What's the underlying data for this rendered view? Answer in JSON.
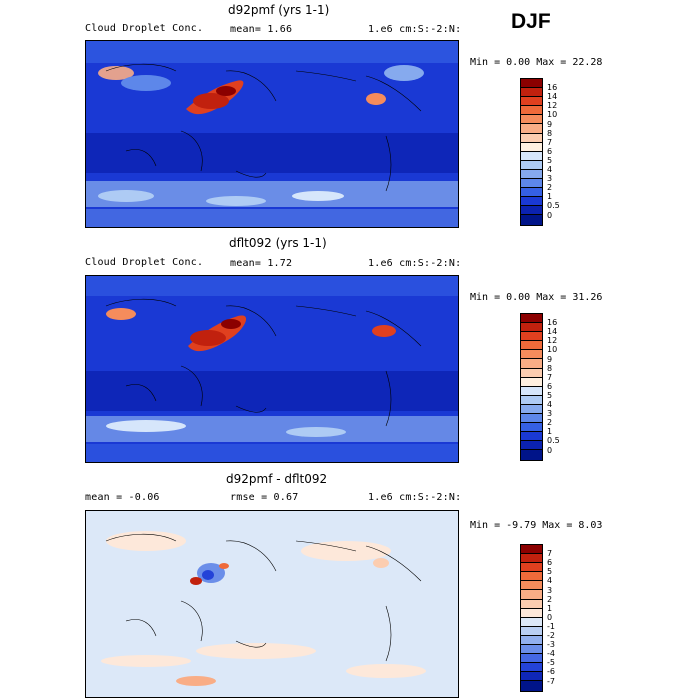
{
  "season": "DJF",
  "panels": [
    {
      "title": "d92pmf (yrs 1-1)",
      "field_label": "Cloud Droplet Conc.",
      "mean_text": "mean=   1.66",
      "units_text": "1.e6 cm:S:-2:N:",
      "minmax_text": "Min =   0.00 Max =  22.28",
      "colorbar": {
        "labels": [
          "16",
          "14",
          "12",
          "10",
          "9",
          "8",
          "7",
          "6",
          "5",
          "4",
          "3",
          "2",
          "1",
          "0.5",
          "0"
        ],
        "colors": [
          "#8b0000",
          "#c1210e",
          "#e0401f",
          "#ef6a3a",
          "#f58c5c",
          "#f9ad86",
          "#fccdb0",
          "#fff0e0",
          "#d6e6fb",
          "#aecbf4",
          "#86aaee",
          "#5d87ea",
          "#3560e4",
          "#1a39d4",
          "#0b22b0",
          "#001489"
        ]
      }
    },
    {
      "title": "dflt092 (yrs 1-1)",
      "field_label": "Cloud Droplet Conc.",
      "mean_text": "mean=   1.72",
      "units_text": "1.e6 cm:S:-2:N:",
      "minmax_text": "Min =   0.00 Max =  31.26",
      "colorbar": {
        "labels": [
          "16",
          "14",
          "12",
          "10",
          "9",
          "8",
          "7",
          "6",
          "5",
          "4",
          "3",
          "2",
          "1",
          "0.5",
          "0"
        ],
        "colors": [
          "#8b0000",
          "#c1210e",
          "#e0401f",
          "#ef6a3a",
          "#f58c5c",
          "#f9ad86",
          "#fccdb0",
          "#fff0e0",
          "#d6e6fb",
          "#aecbf4",
          "#86aaee",
          "#5d87ea",
          "#3560e4",
          "#1a39d4",
          "#0b22b0",
          "#001489"
        ]
      }
    },
    {
      "title": "d92pmf - dflt092",
      "field_label": "",
      "mean_text": "mean =  -0.06",
      "rmse_text": "rmse =   0.67",
      "units_text": "1.e6 cm:S:-2:N:",
      "minmax_text": "Min =  -9.79 Max =   8.03",
      "colorbar": {
        "labels": [
          "7",
          "6",
          "5",
          "4",
          "3",
          "2",
          "1",
          "0",
          "-1",
          "-2",
          "-3",
          "-4",
          "-5",
          "-6",
          "-7"
        ],
        "colors": [
          "#8b0000",
          "#c1210e",
          "#e0401f",
          "#ef6a3a",
          "#f58c5c",
          "#f9ad86",
          "#fccdb0",
          "#fde8da",
          "#dce8f8",
          "#b9cff3",
          "#92b0ee",
          "#6b8ee9",
          "#4568e4",
          "#2443d8",
          "#0f27b8",
          "#001489"
        ]
      }
    }
  ]
}
